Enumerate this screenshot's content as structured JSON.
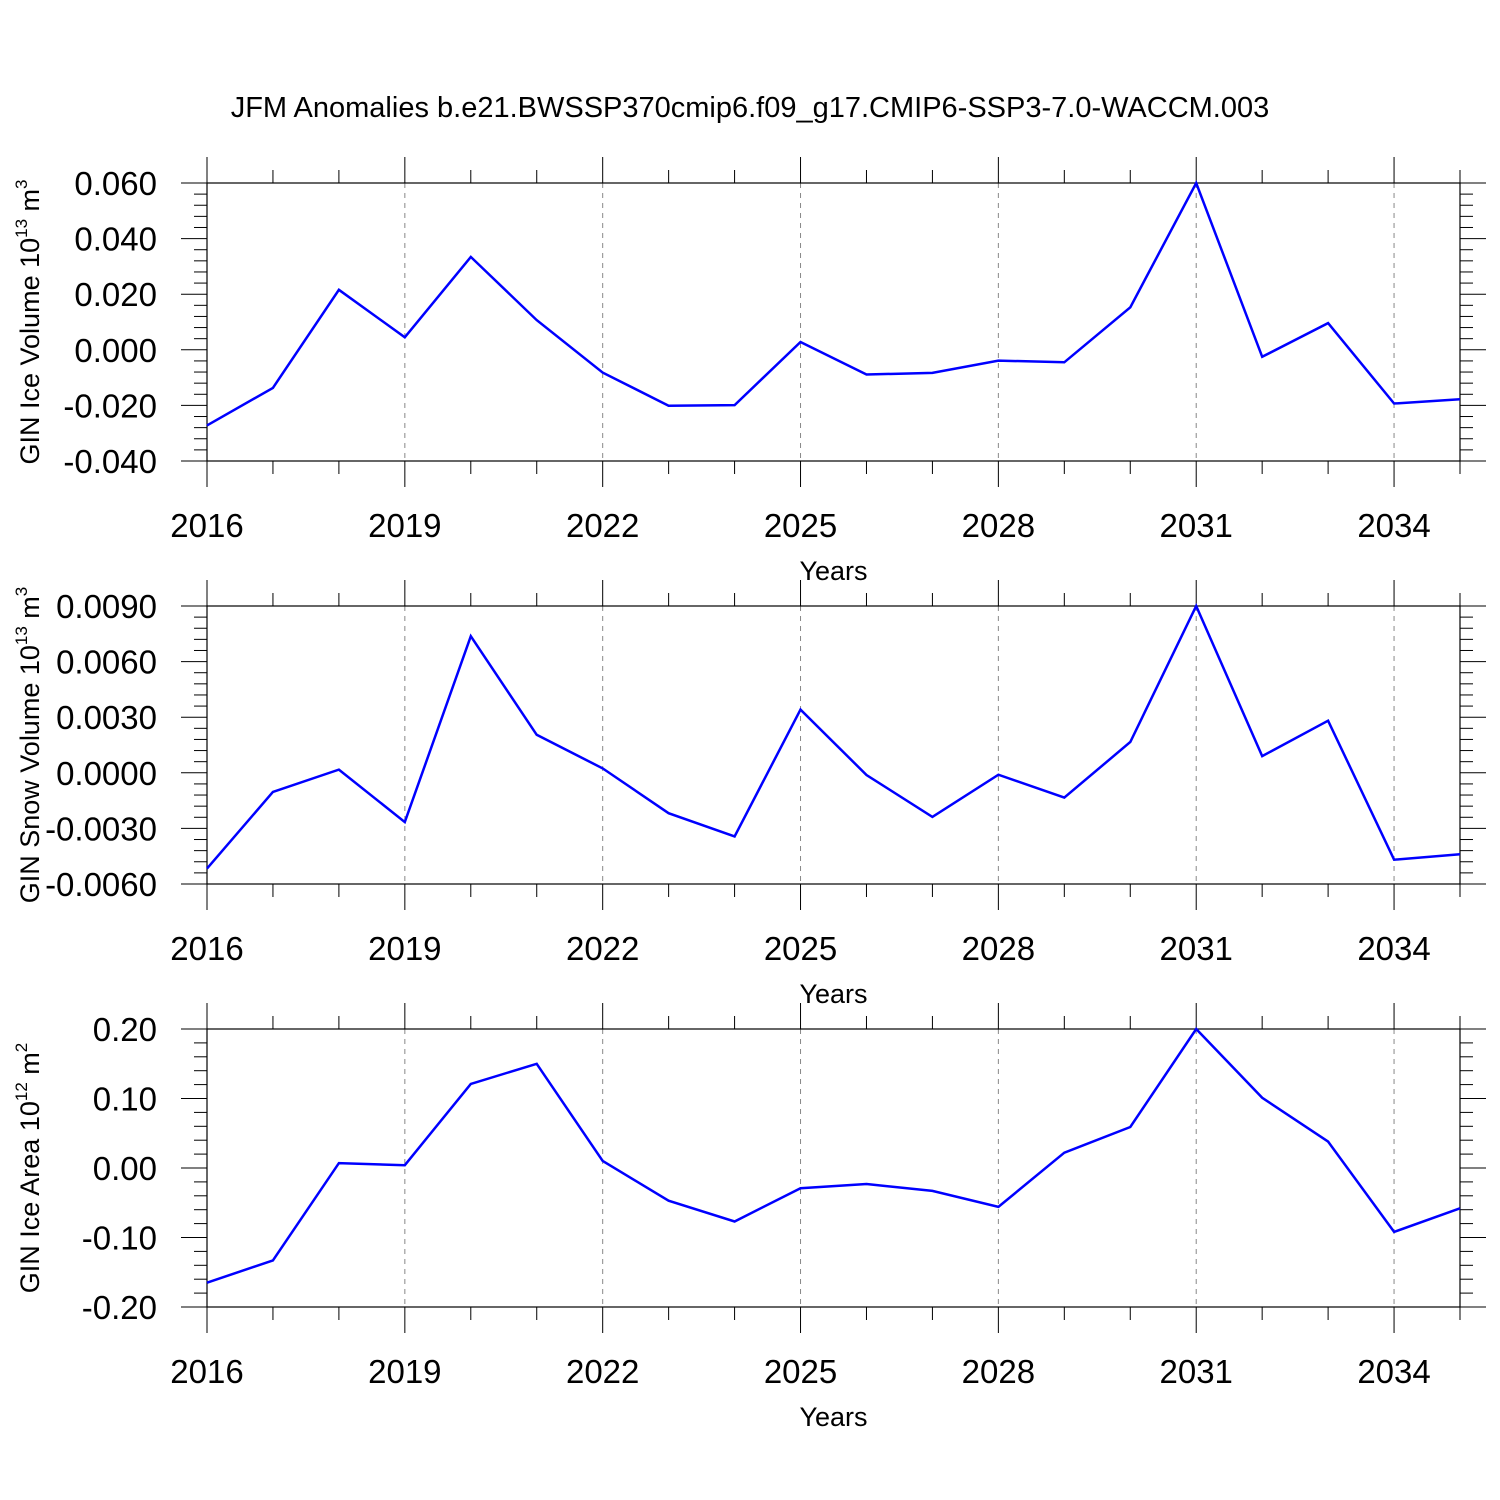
{
  "title": "JFM Anomalies b.e21.BWSSP370cmip6.f09_g17.CMIP6-SSP3-7.0-WACCM.003",
  "colors": {
    "line": "#0000ff",
    "axis": "#000000",
    "grid": "#888888"
  },
  "chart_data": [
    {
      "type": "line",
      "ylabel": "GIN Ice Volume 10",
      "ylabel_exp": "13",
      "ylabel_unit": " m",
      "ylabel_unit_exp": "3",
      "xlabel": "Years",
      "xlim": [
        2016,
        2035
      ],
      "ylim": [
        -0.04,
        0.06
      ],
      "yticks": [
        -0.04,
        -0.02,
        0.0,
        0.02,
        0.04,
        0.06
      ],
      "ytick_labels": [
        "-0.040",
        "-0.020",
        "0.000",
        "0.020",
        "0.040",
        "0.060"
      ],
      "xticks": [
        2016,
        2019,
        2022,
        2025,
        2028,
        2031,
        2034
      ],
      "xtick_labels": [
        "2016",
        "2019",
        "2022",
        "2025",
        "2028",
        "2031",
        "2034"
      ],
      "x": [
        2016,
        2017,
        2018,
        2019,
        2020,
        2021,
        2022,
        2023,
        2024,
        2025,
        2026,
        2027,
        2028,
        2029,
        2030,
        2031,
        2032,
        2033,
        2034,
        2035
      ],
      "values": [
        -0.0272,
        -0.0137,
        0.0216,
        0.0045,
        0.0334,
        0.0107,
        -0.0082,
        -0.0201,
        -0.0199,
        0.0028,
        -0.0089,
        -0.0083,
        -0.0039,
        -0.0045,
        0.0153,
        0.06,
        -0.0025,
        0.0096,
        -0.0193,
        -0.0178
      ]
    },
    {
      "type": "line",
      "ylabel": "GIN Snow Volume 10",
      "ylabel_exp": "13",
      "ylabel_unit": " m",
      "ylabel_unit_exp": "3",
      "xlabel": "Years",
      "xlim": [
        2016,
        2035
      ],
      "ylim": [
        -0.006,
        0.009
      ],
      "yticks": [
        -0.006,
        -0.003,
        0.0,
        0.003,
        0.006,
        0.009
      ],
      "ytick_labels": [
        "-0.0060",
        "-0.0030",
        "0.0000",
        "0.0030",
        "0.0060",
        "0.0090"
      ],
      "xticks": [
        2016,
        2019,
        2022,
        2025,
        2028,
        2031,
        2034
      ],
      "xtick_labels": [
        "2016",
        "2019",
        "2022",
        "2025",
        "2028",
        "2031",
        "2034"
      ],
      "x": [
        2016,
        2017,
        2018,
        2019,
        2020,
        2021,
        2022,
        2023,
        2024,
        2025,
        2026,
        2027,
        2028,
        2029,
        2030,
        2031,
        2032,
        2033,
        2034,
        2035
      ],
      "values": [
        -0.00517,
        -0.00103,
        0.00017,
        -0.00266,
        0.00737,
        0.00205,
        0.00024,
        -0.00218,
        -0.00343,
        0.00341,
        -0.00012,
        -0.00238,
        -0.0001,
        -0.00134,
        0.00166,
        0.009,
        0.0009,
        0.00281,
        -0.00469,
        -0.00439
      ]
    },
    {
      "type": "line",
      "ylabel": "GIN Ice Area 10",
      "ylabel_exp": "12",
      "ylabel_unit": " m",
      "ylabel_unit_exp": "2",
      "xlabel": "Years",
      "xlim": [
        2016,
        2035
      ],
      "ylim": [
        -0.2,
        0.2
      ],
      "yticks": [
        -0.2,
        -0.1,
        0.0,
        0.1,
        0.2
      ],
      "ytick_labels": [
        "-0.20",
        "-0.10",
        "0.00",
        "0.10",
        "0.20"
      ],
      "xticks": [
        2016,
        2019,
        2022,
        2025,
        2028,
        2031,
        2034
      ],
      "xtick_labels": [
        "2016",
        "2019",
        "2022",
        "2025",
        "2028",
        "2031",
        "2034"
      ],
      "x": [
        2016,
        2017,
        2018,
        2019,
        2020,
        2021,
        2022,
        2023,
        2024,
        2025,
        2026,
        2027,
        2028,
        2029,
        2030,
        2031,
        2032,
        2033,
        2034,
        2035
      ],
      "values": [
        -0.165,
        -0.133,
        0.007,
        0.004,
        0.121,
        0.15,
        0.01,
        -0.047,
        -0.077,
        -0.029,
        -0.023,
        -0.033,
        -0.056,
        0.022,
        0.059,
        0.2,
        0.101,
        0.038,
        -0.092,
        -0.058
      ]
    }
  ]
}
